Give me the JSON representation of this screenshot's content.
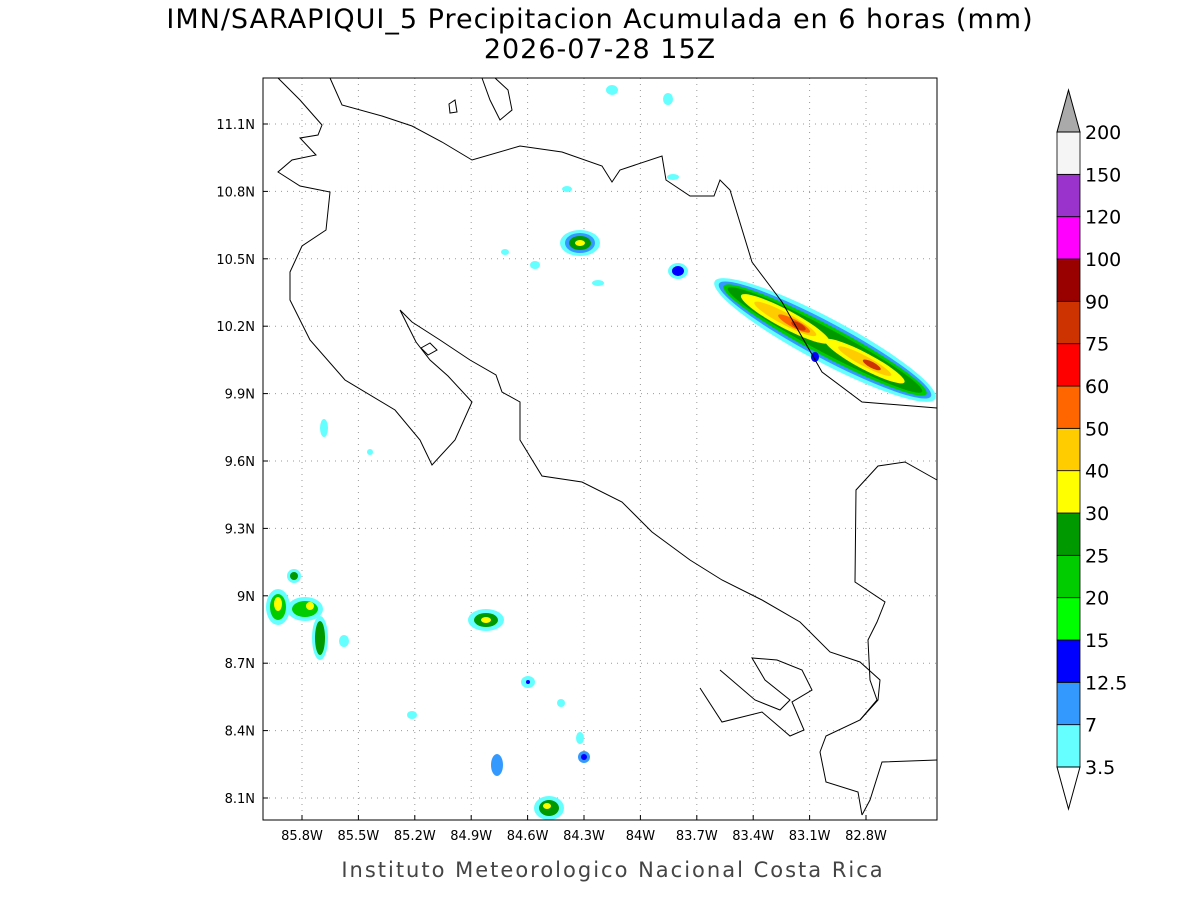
{
  "title": "IMN/SARAPIQUI_5 Precipitacion Acumulada en 6 horas (mm)",
  "subtitle": "2026-07-28 15Z",
  "lat_ticks": [
    "11.1N",
    "10.8N",
    "10.5N",
    "10.2N",
    "9.9N",
    "9.6N",
    "9.3N",
    "9N",
    "8.7N",
    "8.4N",
    "8.1N"
  ],
  "lon_ticks": [
    "85.8W",
    "85.5W",
    "85.2W",
    "84.9W",
    "84.6W",
    "84.3W",
    "84W",
    "83.7W",
    "83.4W",
    "83.1W",
    "82.8W"
  ],
  "colorbar": {
    "levels": [
      3.5,
      7,
      12.5,
      15,
      20,
      25,
      30,
      40,
      50,
      60,
      75,
      90,
      100,
      120,
      150,
      200
    ],
    "colors": [
      "#66ffff",
      "#3399ff",
      "#0000ff",
      "#00ff00",
      "#00cc00",
      "#009900",
      "#ffff00",
      "#ffcc00",
      "#ff6600",
      "#ff0000",
      "#cc3300",
      "#990000",
      "#ff00ff",
      "#9933cc",
      "#f5f5f5"
    ],
    "under_color": "#ffffff",
    "over_color": "#aaaaaa"
  },
  "footer": "Instituto Meteorologico Nacional Costa Rica"
}
